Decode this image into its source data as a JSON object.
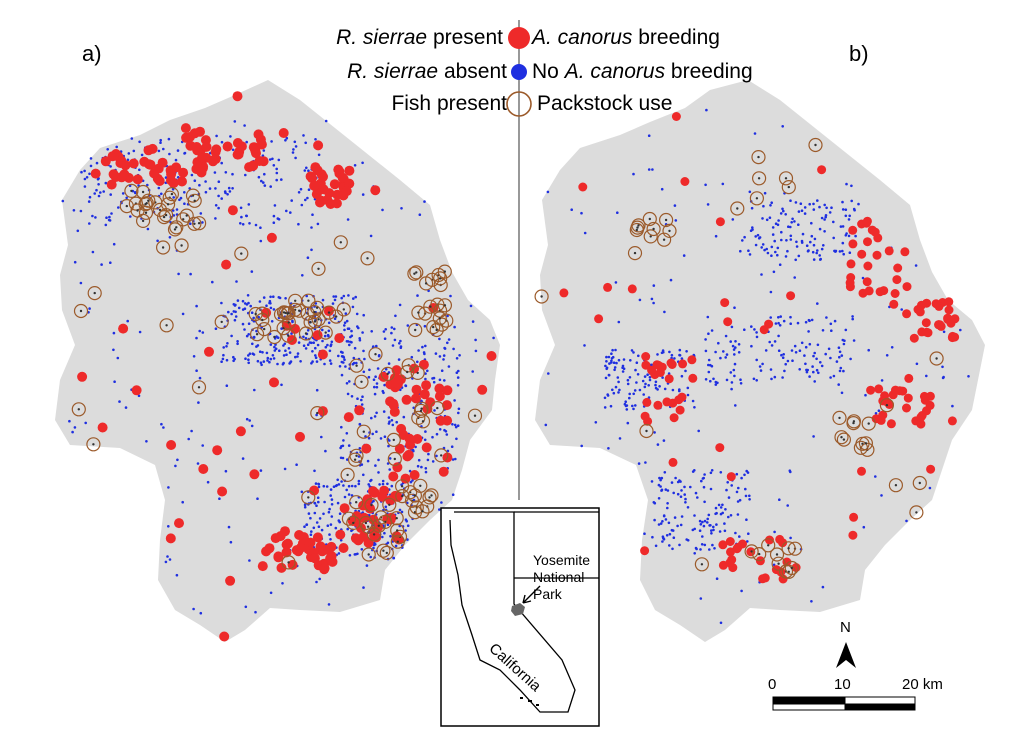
{
  "panels": [
    {
      "label": "a)"
    },
    {
      "label": "b)"
    }
  ],
  "legend": {
    "left": [
      {
        "italic": "R. sierrae",
        "text": " present",
        "symbol": "red-dot"
      },
      {
        "italic": "R. sierrae",
        "text": " absent",
        "symbol": "blue-dot"
      },
      {
        "italic": "",
        "text": "Fish present",
        "symbol": "brown-ring"
      }
    ],
    "right": [
      {
        "prefix": "",
        "italic": "A. canorus",
        "text": " breeding",
        "symbol": "red-dot"
      },
      {
        "prefix": "No ",
        "italic": "A. canorus",
        "text": " breeding",
        "symbol": "blue-dot"
      },
      {
        "prefix": "",
        "italic": "",
        "text": "Packstock use",
        "symbol": "brown-ring"
      }
    ]
  },
  "inset": {
    "park_name": "Yosemite\nNational\nPark",
    "state_name": "California"
  },
  "north_arrow": {
    "label": "N"
  },
  "scale_bar": {
    "ticks": [
      "0",
      "10",
      "20 km"
    ]
  },
  "colors": {
    "park_fill": "#dcdcdc",
    "present": "#ee2a2a",
    "absent": "#1f2fe0",
    "ring": "#9b5a2a",
    "inset_park": "#666666"
  }
}
